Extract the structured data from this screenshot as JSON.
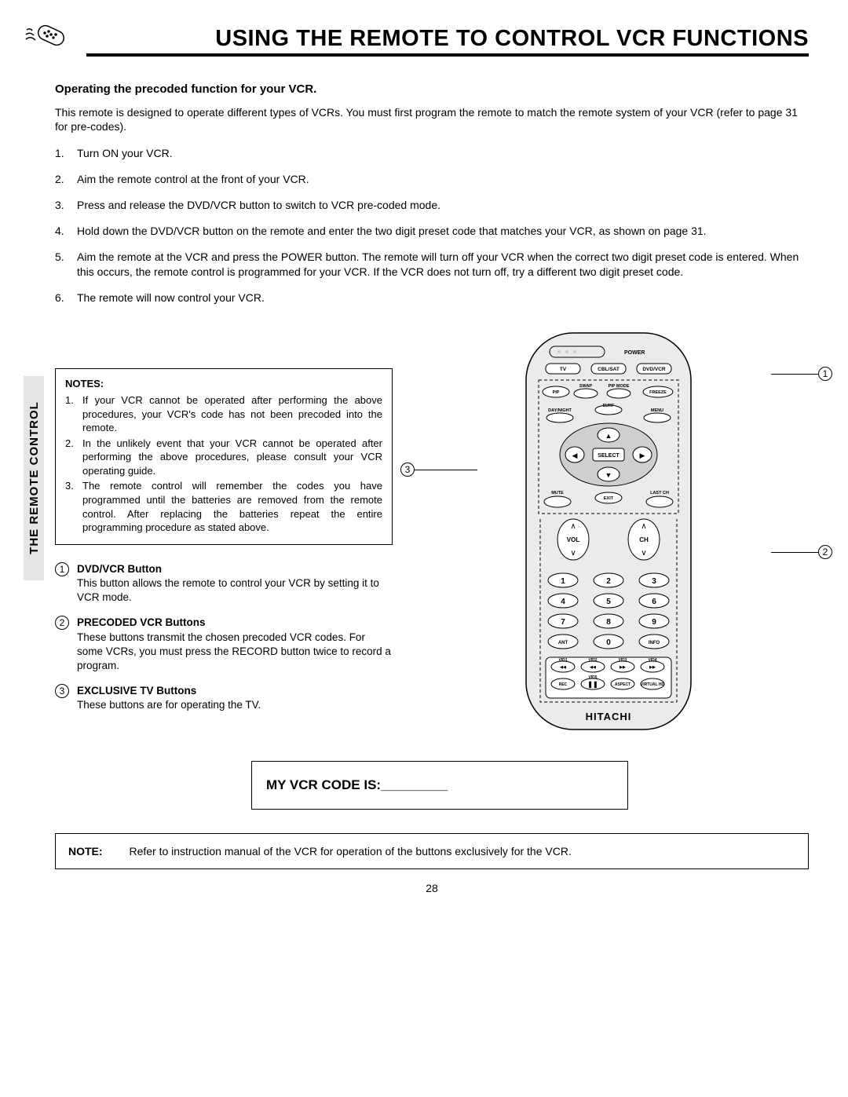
{
  "title": "USING THE REMOTE TO CONTROL VCR FUNCTIONS",
  "side_tab": "THE REMOTE CONTROL",
  "subhead": "Operating the precoded function for your VCR.",
  "intro": "This remote is designed to operate different types of VCRs.  You must first program the remote to match the remote system of your VCR (refer to page 31 for pre-codes).",
  "steps": [
    "Turn ON your VCR.",
    "Aim the remote control at the front of your VCR.",
    "Press and release the DVD/VCR button to switch to VCR pre-coded mode.",
    "Hold down the DVD/VCR button on the remote and enter the two digit preset code that matches your VCR, as shown on page 31.",
    "Aim the remote at the VCR and press the POWER button.  The remote will turn off your VCR when the correct two digit preset code is entered.  When this occurs, the remote control is programmed for your VCR.  If the VCR does not turn off, try a different two digit preset code.",
    "The remote will now control your VCR."
  ],
  "notes_head": "NOTES:",
  "notes": [
    "If your VCR cannot be operated after performing the above procedures, your VCR's code has not been precoded into the remote.",
    "In the unlikely event that your VCR cannot be operated after performing the above procedures, please consult your VCR operating guide.",
    "The remote control will remember the codes you have programmed until the batteries are removed from the remote control.  After replacing the batteries repeat the entire programming procedure as stated above."
  ],
  "button_descs": [
    {
      "n": "1",
      "head": "DVD/VCR Button",
      "body": "This button allows the remote to control your VCR by  setting it to VCR mode."
    },
    {
      "n": "2",
      "head": "PRECODED VCR Buttons",
      "body": "These buttons transmit the chosen precoded VCR codes.  For some VCRs, you must press the RECORD button twice to record a program."
    },
    {
      "n": "3",
      "head": "EXCLUSIVE TV Buttons",
      "body": "These buttons are for operating the TV."
    }
  ],
  "callouts": {
    "c1": "1",
    "c2": "2",
    "c3": "3"
  },
  "remote": {
    "brand": "HITACHI",
    "labels": {
      "power": "POWER",
      "tv": "TV",
      "cblsat": "CBL/SAT",
      "dvdvcr": "DVD/VCR",
      "pip": "PIP",
      "swap": "SWAP",
      "pipmode": "PIP MODE",
      "freeze": "FREEZE",
      "daynight": "DAY/NIGHT",
      "surf": "SURF",
      "menu": "MENU",
      "select": "SELECT",
      "mute": "MUTE",
      "exit": "EXIT",
      "lastch": "LAST CH",
      "vol": "VOL",
      "ch": "CH",
      "ant": "ANT",
      "info": "INFO",
      "rec": "REC",
      "aspect": "ASPECT",
      "virtualhd": "VIRTUAL HD",
      "vid1": "VID1",
      "vid2": "VID2",
      "vid3": "VID3",
      "vid4": "VID4",
      "vid5": "VID5"
    },
    "digits": [
      "1",
      "2",
      "3",
      "4",
      "5",
      "6",
      "7",
      "8",
      "9",
      "0"
    ]
  },
  "code_box": "MY VCR CODE IS:_________",
  "bottom_note_label": "NOTE:",
  "bottom_note": "Refer to instruction manual of the VCR for operation of the buttons exclusively for the VCR.",
  "page": "28",
  "colors": {
    "tab_bg": "#e5e5e5",
    "remote_fill": "#ebebeb"
  }
}
